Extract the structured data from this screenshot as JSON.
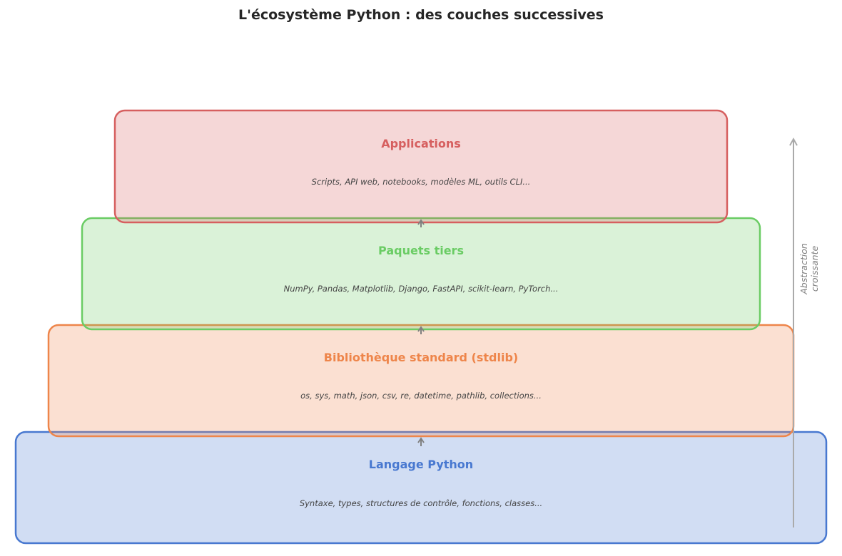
{
  "title": "L'écosystème Python : des couches successives",
  "layers": [
    {
      "name": "Langage Python",
      "description": "Syntaxe, types, structures de contrôle, fonctions, classes...",
      "color": "#4878d0"
    },
    {
      "name": "Bibliothèque standard (stdlib)",
      "description": "os, sys, math, json, csv, re, datetime, pathlib, collections...",
      "color": "#ee854a"
    },
    {
      "name": "Paquets tiers",
      "description": "NumPy, Pandas, Matplotlib, Django, FastAPI, scikit-learn, PyTorch...",
      "color": "#6acc64"
    },
    {
      "name": "Applications",
      "description": "Scripts, API web, notebooks, modèles ML, outils CLI...",
      "color": "#d65f5f"
    }
  ],
  "side_axis": {
    "line1": "Abstraction",
    "line2": "croissante",
    "color": "#aaaaaa"
  },
  "connector_color": "#808080"
}
